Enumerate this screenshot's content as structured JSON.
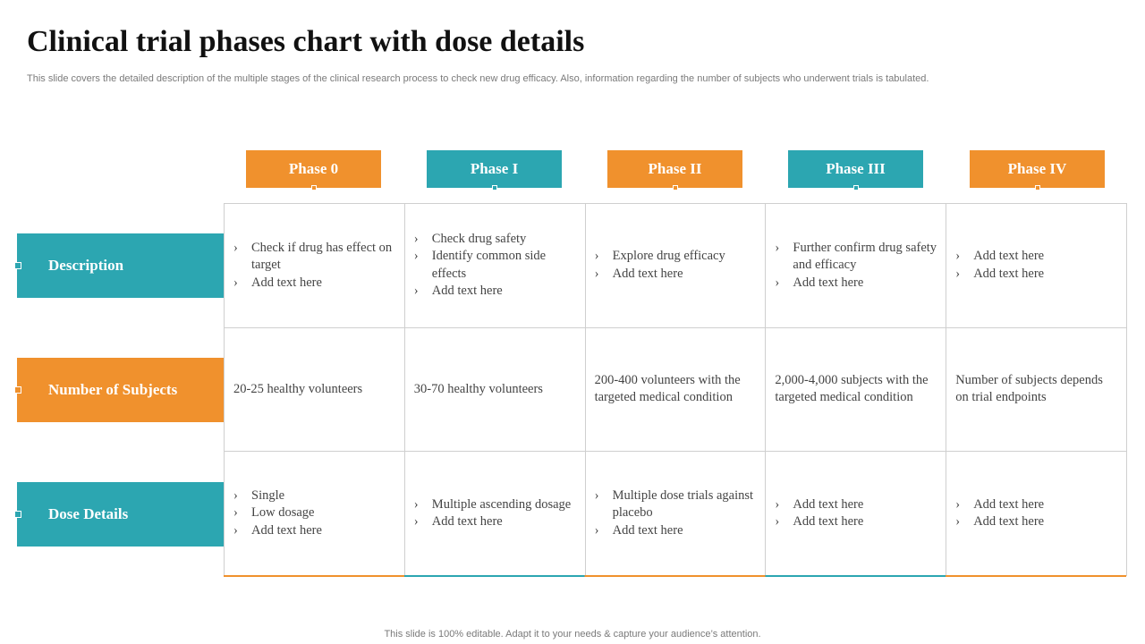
{
  "title": "Clinical trial phases chart with dose details",
  "subtitle": "This slide covers the detailed description of the multiple stages of the clinical research process to check new drug efficacy.  Also, information regarding the number of subjects who underwent trials is tabulated.",
  "phases": [
    "Phase 0",
    "Phase I",
    "Phase II",
    "Phase III",
    "Phase IV"
  ],
  "phase_colors": [
    "#f0912d",
    "#2ca6b1",
    "#f0912d",
    "#2ca6b1",
    "#f0912d"
  ],
  "rows": {
    "description": {
      "label": "Description",
      "cells": [
        [
          "Check if drug has effect on target",
          "Add text  here"
        ],
        [
          "Check drug safety",
          "Identify  common  side effects",
          "Add text  here"
        ],
        [
          "Explore  drug efficacy",
          "Add text  here"
        ],
        [
          "Further confirm  drug safety  and efficacy",
          "Add text  here"
        ],
        [
          "Add text  here",
          "Add text  here"
        ]
      ]
    },
    "subjects": {
      "label": "Number of Subjects",
      "cells": [
        "20-25 healthy  volunteers",
        "30-70 healthy  volunteers",
        "200-400 volunteers  with  the targeted  medical  condition",
        "2,000-4,000 subjects  with the targeted medical condition",
        "Number of subjects depends on trial  endpoints"
      ]
    },
    "dose": {
      "label": "Dose Details",
      "cells": [
        [
          "Single",
          "Low dosage",
          "Add text  here"
        ],
        [
          "Multiple   ascending dosage",
          "Add text  here"
        ],
        [
          "Multiple  dose trials against  placebo",
          "Add text  here"
        ],
        [
          "Add text  here",
          "Add text  here"
        ],
        [
          "Add text  here",
          "Add text  here"
        ]
      ]
    }
  },
  "row_colors": {
    "description": "#2ca6b1",
    "subjects": "#f0912d",
    "dose": "#2ca6b1"
  },
  "footer": "This slide is 100% editable. Adapt it to your needs & capture your audience’s attention."
}
